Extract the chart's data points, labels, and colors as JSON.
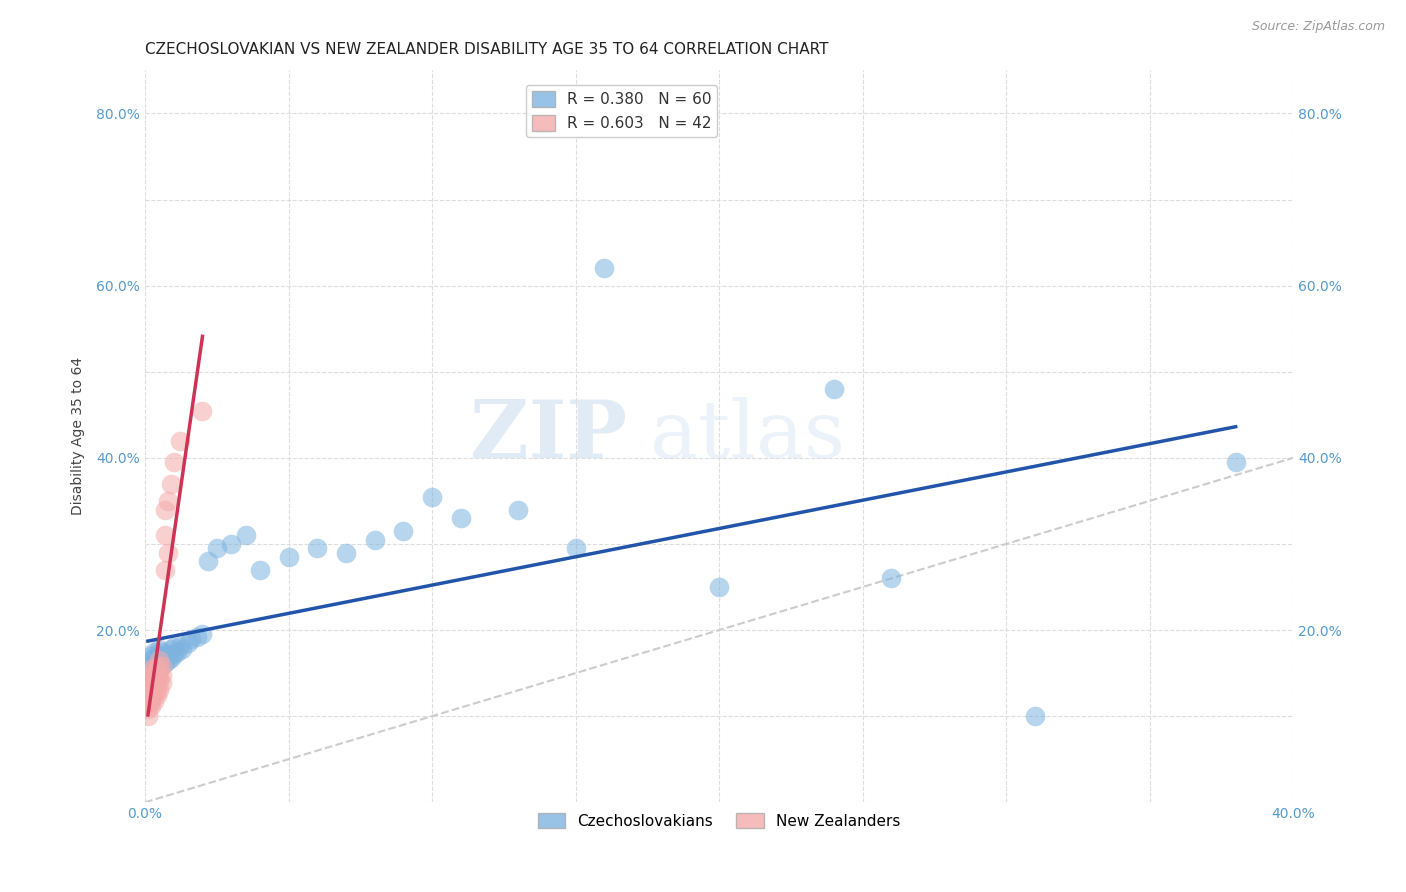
{
  "title": "CZECHOSLOVAKIAN VS NEW ZEALANDER DISABILITY AGE 35 TO 64 CORRELATION CHART",
  "source": "Source: ZipAtlas.com",
  "ylabel": "Disability Age 35 to 64",
  "xlim": [
    0.0,
    0.4
  ],
  "ylim": [
    0.0,
    0.85
  ],
  "czech_color": "#7EB3E0",
  "czech_line_color": "#2255AA",
  "nz_color": "#F4AAAA",
  "nz_line_color": "#CC3355",
  "czech_R": 0.38,
  "czech_N": 60,
  "nz_R": 0.603,
  "nz_N": 42,
  "legend_label_czech": "Czechoslovakians",
  "legend_label_nz": "New Zealanders",
  "watermark_zip": "ZIP",
  "watermark_atlas": "atlas",
  "background_color": "#FFFFFF",
  "grid_color": "#DDDDDD",
  "title_fontsize": 11,
  "axis_label_fontsize": 10,
  "tick_fontsize": 10,
  "legend_fontsize": 11,
  "czech_x": [
    0.001,
    0.001,
    0.001,
    0.001,
    0.002,
    0.002,
    0.002,
    0.002,
    0.002,
    0.003,
    0.003,
    0.003,
    0.003,
    0.003,
    0.004,
    0.004,
    0.004,
    0.004,
    0.005,
    0.005,
    0.005,
    0.005,
    0.006,
    0.006,
    0.006,
    0.007,
    0.007,
    0.008,
    0.008,
    0.009,
    0.009,
    0.01,
    0.01,
    0.011,
    0.012,
    0.013,
    0.015,
    0.016,
    0.018,
    0.02,
    0.022,
    0.025,
    0.03,
    0.035,
    0.04,
    0.05,
    0.06,
    0.07,
    0.08,
    0.09,
    0.1,
    0.11,
    0.13,
    0.15,
    0.16,
    0.2,
    0.24,
    0.26,
    0.31,
    0.38
  ],
  "czech_y": [
    0.13,
    0.145,
    0.155,
    0.16,
    0.14,
    0.15,
    0.16,
    0.165,
    0.17,
    0.148,
    0.155,
    0.162,
    0.168,
    0.175,
    0.15,
    0.158,
    0.165,
    0.172,
    0.155,
    0.162,
    0.17,
    0.178,
    0.16,
    0.168,
    0.175,
    0.162,
    0.17,
    0.165,
    0.172,
    0.168,
    0.178,
    0.172,
    0.18,
    0.175,
    0.182,
    0.178,
    0.185,
    0.19,
    0.192,
    0.195,
    0.28,
    0.295,
    0.3,
    0.31,
    0.27,
    0.285,
    0.295,
    0.29,
    0.305,
    0.315,
    0.355,
    0.33,
    0.34,
    0.295,
    0.62,
    0.25,
    0.48,
    0.26,
    0.1,
    0.395
  ],
  "nz_x": [
    0.001,
    0.001,
    0.001,
    0.001,
    0.001,
    0.001,
    0.001,
    0.002,
    0.002,
    0.002,
    0.002,
    0.002,
    0.002,
    0.002,
    0.003,
    0.003,
    0.003,
    0.003,
    0.003,
    0.003,
    0.004,
    0.004,
    0.004,
    0.004,
    0.004,
    0.005,
    0.005,
    0.005,
    0.005,
    0.005,
    0.006,
    0.006,
    0.006,
    0.007,
    0.007,
    0.007,
    0.008,
    0.008,
    0.009,
    0.01,
    0.012,
    0.02
  ],
  "nz_y": [
    0.1,
    0.108,
    0.115,
    0.122,
    0.128,
    0.135,
    0.142,
    0.112,
    0.118,
    0.125,
    0.132,
    0.14,
    0.148,
    0.155,
    0.118,
    0.125,
    0.132,
    0.14,
    0.148,
    0.155,
    0.125,
    0.132,
    0.142,
    0.148,
    0.155,
    0.13,
    0.14,
    0.148,
    0.158,
    0.165,
    0.138,
    0.148,
    0.158,
    0.27,
    0.31,
    0.34,
    0.29,
    0.35,
    0.37,
    0.395,
    0.42,
    0.455
  ]
}
